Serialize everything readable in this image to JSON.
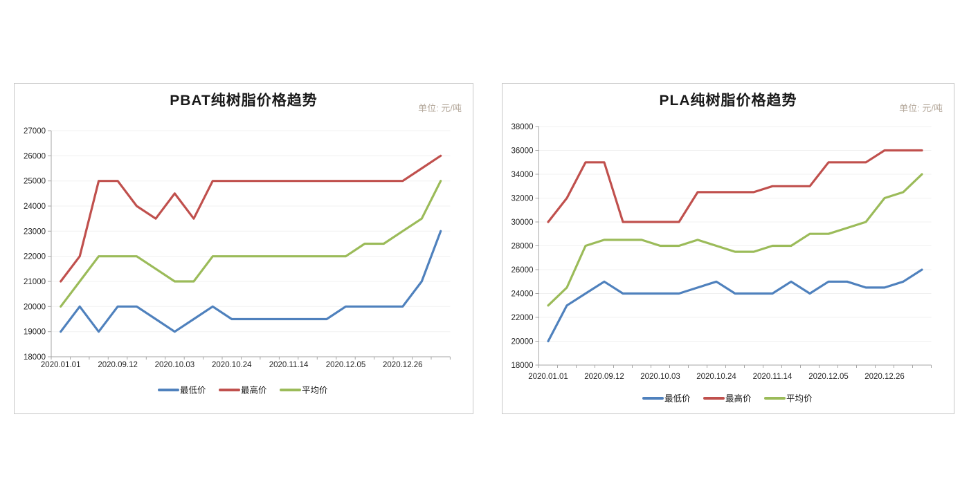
{
  "styles": {
    "axis_color": "#a6a6a6",
    "grid_color": "#f0f0f0",
    "title_color": "#1a1a1a",
    "unit_color": "#b4a89b",
    "tick_label_color": "#262626",
    "legend_text_color": "#1a1a1a",
    "panel_border": "#c6c6c6",
    "series_blue": "#4F81BD",
    "series_red": "#C0504D",
    "series_green": "#9BBB59"
  },
  "chart_data": [
    {
      "type": "line",
      "title": "PBAT纯树脂价格趋势",
      "unit": "单位: 元/吨",
      "legend_position": "bottom",
      "grid": true,
      "num_points": 21,
      "x_label_interval": 3,
      "x_tick_labels": [
        "2020.01.01",
        "2020.09.12",
        "2020.10.03",
        "2020.10.24",
        "2020.11.14",
        "2020.12.05",
        "2020.12.26"
      ],
      "ylim": [
        18000,
        27000
      ],
      "ystep": 1000,
      "y_tick_labels": [
        "18000",
        "19000",
        "20000",
        "21000",
        "22000",
        "23000",
        "24000",
        "25000",
        "26000",
        "27000"
      ],
      "series": [
        {
          "key": "min",
          "name": "最低价",
          "color": "#4F81BD",
          "values": [
            19000,
            20000,
            19000,
            20000,
            20000,
            19500,
            19000,
            19500,
            20000,
            19500,
            19500,
            19500,
            19500,
            19500,
            19500,
            20000,
            20000,
            20000,
            20000,
            21000,
            23000
          ]
        },
        {
          "key": "max",
          "name": "最高价",
          "color": "#C0504D",
          "values": [
            21000,
            22000,
            25000,
            25000,
            24000,
            23500,
            24500,
            23500,
            25000,
            25000,
            25000,
            25000,
            25000,
            25000,
            25000,
            25000,
            25000,
            25000,
            25000,
            25500,
            26000
          ]
        },
        {
          "key": "avg",
          "name": "平均价",
          "color": "#9BBB59",
          "values": [
            20000,
            21000,
            22000,
            22000,
            22000,
            21500,
            21000,
            21000,
            22000,
            22000,
            22000,
            22000,
            22000,
            22000,
            22000,
            22000,
            22500,
            22500,
            23000,
            23500,
            25000
          ]
        }
      ]
    },
    {
      "type": "line",
      "title": "PLA纯树脂价格趋势",
      "unit": "单位: 元/吨",
      "legend_position": "bottom",
      "grid": true,
      "num_points": 21,
      "x_label_interval": 3,
      "x_tick_labels": [
        "2020.01.01",
        "2020.09.12",
        "2020.10.03",
        "2020.10.24",
        "2020.11.14",
        "2020.12.05",
        "2020.12.26"
      ],
      "ylim": [
        18000,
        38000
      ],
      "ystep": 2000,
      "y_tick_labels": [
        "18000",
        "20000",
        "22000",
        "24000",
        "26000",
        "28000",
        "30000",
        "32000",
        "34000",
        "36000",
        "38000"
      ],
      "series": [
        {
          "key": "min",
          "name": "最低价",
          "color": "#4F81BD",
          "values": [
            20000,
            23000,
            24000,
            25000,
            24000,
            24000,
            24000,
            24000,
            24500,
            25000,
            24000,
            24000,
            24000,
            25000,
            24000,
            25000,
            25000,
            24500,
            24500,
            25000,
            26000
          ]
        },
        {
          "key": "max",
          "name": "最高价",
          "color": "#C0504D",
          "values": [
            30000,
            32000,
            35000,
            35000,
            30000,
            30000,
            30000,
            30000,
            32500,
            32500,
            32500,
            32500,
            33000,
            33000,
            33000,
            35000,
            35000,
            35000,
            36000,
            36000,
            36000
          ]
        },
        {
          "key": "avg",
          "name": "平均价",
          "color": "#9BBB59",
          "values": [
            23000,
            24500,
            28000,
            28500,
            28500,
            28500,
            28000,
            28000,
            28500,
            28000,
            27500,
            27500,
            28000,
            28000,
            29000,
            29000,
            29500,
            30000,
            32000,
            32500,
            34000
          ]
        }
      ]
    }
  ]
}
